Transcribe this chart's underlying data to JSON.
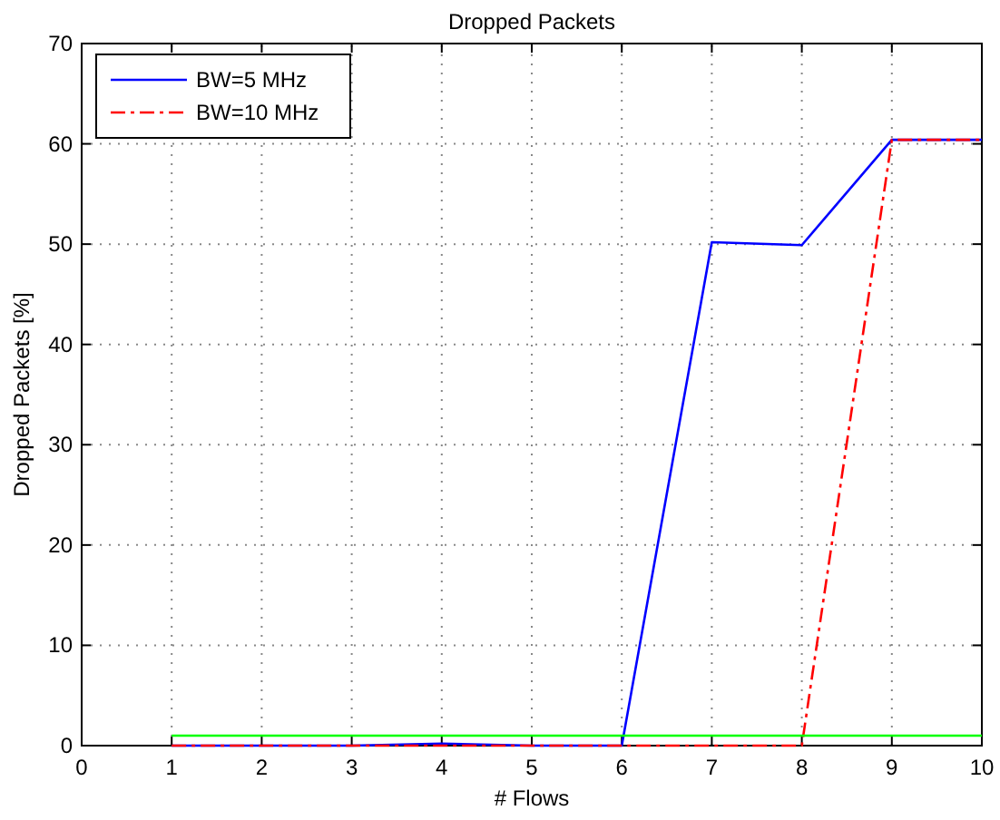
{
  "chart_data": {
    "type": "line",
    "title": "Dropped Packets",
    "xlabel": "# Flows",
    "ylabel": "Dropped Packets [%]",
    "x": [
      1,
      2,
      3,
      4,
      5,
      6,
      7,
      8,
      9,
      10
    ],
    "series": [
      {
        "name": "BW=5 MHz",
        "color": "#0000ff",
        "line_style": "solid",
        "values": [
          0,
          0,
          0,
          0.2,
          0,
          0,
          50.2,
          49.9,
          60.4,
          60.4
        ]
      },
      {
        "name": "BW=10 MHz",
        "color": "#ff0000",
        "line_style": "dashdot",
        "values": [
          0,
          0,
          0,
          0,
          0,
          0,
          0,
          0,
          60.4,
          60.4
        ]
      },
      {
        "color": "#00ff00",
        "line_style": "solid",
        "values": [
          1,
          1,
          1,
          1,
          1,
          1,
          1,
          1,
          1,
          1
        ]
      }
    ],
    "xlim": [
      0,
      10
    ],
    "xticks": [
      0,
      1,
      2,
      3,
      4,
      5,
      6,
      7,
      8,
      9,
      10
    ],
    "ylim": [
      0,
      70
    ],
    "yticks": [
      0,
      10,
      20,
      30,
      40,
      50,
      60,
      70
    ],
    "grid": true,
    "legend": "top left",
    "marker": "none"
  }
}
